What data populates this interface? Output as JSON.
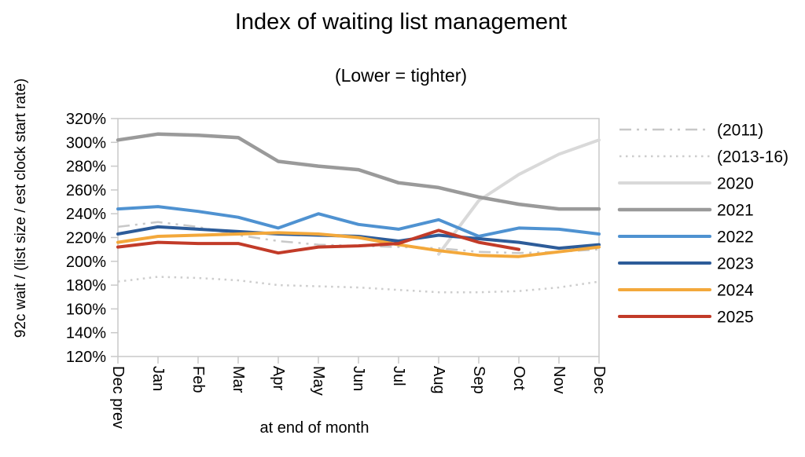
{
  "chart_data": {
    "type": "line",
    "title": "Index of waiting list management",
    "subtitle": "(Lower = tighter)",
    "xlabel": "at end of month",
    "ylabel": "92c wait / (list size / est clock start rate)",
    "ylim": [
      120,
      320
    ],
    "ytick_step": 20,
    "ytick_suffix": "%",
    "grid": false,
    "legend_position": "right",
    "categories": [
      "Dec prev",
      "Jan",
      "Feb",
      "Mar",
      "Apr",
      "May",
      "Jun",
      "Jul",
      "Aug",
      "Sep",
      "Oct",
      "Nov",
      "Dec"
    ],
    "series": [
      {
        "name": "(2011)",
        "color": "#c8c8c8",
        "style": "dashdot",
        "width": 2.5,
        "values": [
          229,
          233,
          229,
          222,
          217,
          214,
          213,
          212,
          211,
          208,
          207,
          208,
          210
        ]
      },
      {
        "name": "(2013-16)",
        "color": "#cdcdcd",
        "style": "dotted",
        "width": 2.5,
        "values": [
          183,
          187,
          186,
          184,
          180,
          179,
          178,
          176,
          174,
          174,
          175,
          178,
          183
        ]
      },
      {
        "name": "2020",
        "color": "#d9d9d9",
        "style": "solid",
        "width": 4,
        "values": [
          null,
          null,
          null,
          null,
          null,
          null,
          null,
          null,
          206,
          251,
          273,
          290,
          302
        ]
      },
      {
        "name": "2021",
        "color": "#9a9a9a",
        "style": "solid",
        "width": 4.5,
        "values": [
          302,
          307,
          306,
          304,
          284,
          280,
          277,
          266,
          262,
          254,
          248,
          244,
          244
        ]
      },
      {
        "name": "2022",
        "color": "#4f92d1",
        "style": "solid",
        "width": 4,
        "values": [
          244,
          246,
          242,
          237,
          228,
          240,
          231,
          227,
          235,
          221,
          228,
          227,
          223
        ]
      },
      {
        "name": "2023",
        "color": "#2d5c99",
        "style": "solid",
        "width": 4,
        "values": [
          223,
          229,
          227,
          225,
          223,
          222,
          221,
          217,
          222,
          219,
          216,
          211,
          214
        ]
      },
      {
        "name": "2024",
        "color": "#f3a83b",
        "style": "solid",
        "width": 4,
        "values": [
          216,
          221,
          222,
          223,
          224,
          223,
          220,
          214,
          209,
          205,
          204,
          208,
          212
        ]
      },
      {
        "name": "2025",
        "color": "#c23b28",
        "style": "solid",
        "width": 4,
        "values": [
          212,
          216,
          215,
          215,
          207,
          212,
          213,
          215,
          226,
          216,
          210,
          null,
          null
        ]
      }
    ]
  }
}
